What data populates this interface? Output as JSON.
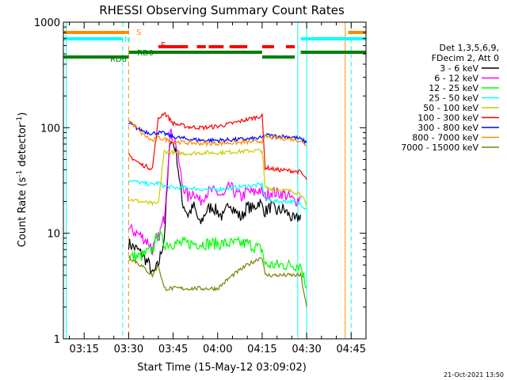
{
  "chart_data": {
    "type": "line",
    "title": "RHESSI Observing Summary Count Rates",
    "xlabel": "Start Time (15-May-12 03:09:02)",
    "ylabel_main": "Count Rate (s",
    "ylabel_sup1": "-1",
    "ylabel_mid": " detector",
    "ylabel_sup2": "-1",
    "ylabel_end": ")",
    "x_range_minutes": [
      188,
      290
    ],
    "y_scale": "log",
    "ylim": [
      1,
      1000
    ],
    "x_ticks": [
      {
        "t": 195,
        "label": "03:15"
      },
      {
        "t": 210,
        "label": "03:30"
      },
      {
        "t": 225,
        "label": "03:45"
      },
      {
        "t": 240,
        "label": "04:00"
      },
      {
        "t": 255,
        "label": "04:15"
      },
      {
        "t": 270,
        "label": "04:30"
      },
      {
        "t": 285,
        "label": "04:45"
      }
    ],
    "y_ticks": [
      {
        "v": 1,
        "label": "1"
      },
      {
        "v": 10,
        "label": "10"
      },
      {
        "v": 100,
        "label": "100"
      },
      {
        "v": 1000,
        "label": "1000"
      }
    ],
    "legend_header": [
      "Det 1,3,5,6,9,",
      "FDecim 2, Att 0"
    ],
    "legend_position": "right",
    "series": [
      {
        "name": "3 - 6 keV",
        "color": "#000000",
        "t": [
          210,
          213,
          215,
          217,
          218,
          220,
          222,
          224,
          226,
          228,
          230,
          232,
          234,
          236,
          238,
          240,
          242,
          244,
          246,
          248,
          250,
          252,
          254,
          256,
          258,
          260,
          262,
          264,
          266,
          268
        ],
        "values": [
          8,
          7,
          6,
          5,
          4,
          5,
          9,
          80,
          60,
          20,
          15,
          18,
          12,
          16,
          18,
          16,
          14,
          20,
          16,
          14,
          18,
          17,
          20,
          16,
          18,
          16,
          17,
          15,
          13,
          15
        ]
      },
      {
        "name": "6 - 12 keV",
        "color": "#ff00ff",
        "t": [
          210,
          213,
          215,
          217,
          218,
          220,
          222,
          224,
          226,
          228,
          230,
          232,
          234,
          236,
          238,
          240,
          242,
          244,
          246,
          248,
          250,
          252,
          254,
          256,
          258,
          260,
          262,
          264,
          266,
          268
        ],
        "values": [
          11,
          10,
          9,
          8,
          7,
          9,
          14,
          90,
          70,
          30,
          22,
          25,
          20,
          24,
          25,
          24,
          22,
          28,
          24,
          22,
          25,
          24,
          26,
          22,
          25,
          24,
          24,
          22,
          20,
          22
        ]
      },
      {
        "name": "12 - 25 keV",
        "color": "#00ff00",
        "t": [
          210,
          214,
          218,
          220,
          222,
          225,
          230,
          235,
          240,
          245,
          250,
          255,
          256,
          260,
          265,
          268,
          270
        ],
        "values": [
          6,
          6,
          7,
          10,
          8,
          8,
          8,
          8,
          8,
          8,
          8,
          7,
          5,
          5,
          5,
          5,
          3
        ]
      },
      {
        "name": "25 - 50 keV",
        "color": "#00ffff",
        "t": [
          210,
          214,
          218,
          220,
          222,
          225,
          230,
          235,
          240,
          245,
          250,
          255,
          256,
          260,
          265,
          268,
          270
        ],
        "values": [
          32,
          30,
          29,
          30,
          28,
          27,
          27,
          26,
          26,
          27,
          28,
          29,
          21,
          20,
          20,
          19,
          17
        ]
      },
      {
        "name": "50 - 100 keV",
        "color": "#cccc00",
        "t": [
          210,
          214,
          218,
          220,
          222,
          225,
          230,
          235,
          240,
          245,
          250,
          255,
          256,
          260,
          265,
          268,
          270
        ],
        "values": [
          21,
          20,
          19,
          19,
          60,
          58,
          57,
          58,
          58,
          59,
          60,
          61,
          27,
          26,
          25,
          24,
          18
        ]
      },
      {
        "name": "100 - 300 keV",
        "color": "#ff0000",
        "t": [
          210,
          214,
          218,
          220,
          222,
          225,
          230,
          235,
          240,
          245,
          250,
          255,
          256,
          260,
          265,
          268,
          270
        ],
        "values": [
          55,
          45,
          41,
          120,
          140,
          110,
          102,
          100,
          103,
          110,
          120,
          130,
          42,
          40,
          39,
          38,
          32
        ]
      },
      {
        "name": "300 - 800 keV",
        "color": "#0000ff",
        "t": [
          210,
          214,
          218,
          220,
          222,
          225,
          230,
          235,
          240,
          245,
          250,
          255,
          256,
          260,
          265,
          268,
          270
        ],
        "values": [
          110,
          95,
          88,
          90,
          88,
          82,
          78,
          76,
          76,
          77,
          78,
          80,
          85,
          83,
          82,
          78,
          72
        ]
      },
      {
        "name": "800 - 7000 keV",
        "color": "#ff8c00",
        "t": [
          210,
          214,
          218,
          220,
          222,
          225,
          230,
          235,
          240,
          245,
          250,
          255,
          256,
          260,
          265,
          268,
          270
        ],
        "values": [
          120,
          90,
          75,
          80,
          78,
          74,
          72,
          71,
          71,
          72,
          73,
          75,
          82,
          80,
          78,
          75,
          68
        ]
      },
      {
        "name": "7000 - 15000 keV",
        "color": "#808000",
        "t": [
          210,
          214,
          218,
          220,
          222,
          225,
          230,
          235,
          240,
          245,
          250,
          255,
          256,
          260,
          265,
          268,
          270
        ],
        "values": [
          6,
          5,
          4,
          5,
          3,
          3,
          3,
          3,
          3,
          4,
          5,
          6,
          4,
          4,
          4,
          4,
          2
        ]
      }
    ],
    "flags": [
      {
        "label": "S",
        "color": "#ff8c00",
        "segments": [
          [
            188,
            210
          ],
          [
            284,
            290
          ]
        ]
      },
      {
        "label": "N",
        "color": "#00ffff",
        "segments": [
          [
            188,
            208
          ],
          [
            268,
            290
          ]
        ]
      },
      {
        "label": "F",
        "color": "#ff0000",
        "segments": [
          [
            220,
            230
          ],
          [
            233,
            236
          ],
          [
            237,
            242
          ],
          [
            244,
            250
          ],
          [
            255,
            259
          ],
          [
            263,
            266
          ]
        ]
      },
      {
        "label": "RD0",
        "color": "#008000",
        "segments": [
          [
            210,
            255
          ],
          [
            268,
            290
          ]
        ]
      },
      {
        "label": "RD6",
        "color": "#008000",
        "segments": [
          [
            188,
            210
          ],
          [
            255,
            266
          ]
        ]
      }
    ],
    "vertical_markers": [
      {
        "t": 208,
        "color": "#00ffff",
        "style": "dashed"
      },
      {
        "t": 210,
        "color": "#ff8c00",
        "style": "dashed"
      },
      {
        "t": 267,
        "color": "#00ffff",
        "style": "solid"
      },
      {
        "t": 270,
        "color": "#00ffff",
        "style": "solid"
      },
      {
        "t": 283,
        "color": "#ff8c00",
        "style": "solid"
      },
      {
        "t": 285,
        "color": "#00ffff",
        "style": "dashed"
      },
      {
        "t": 189,
        "color": "#00ffff",
        "style": "solid"
      }
    ],
    "timestamp": "21-Oct-2021 13:50"
  }
}
